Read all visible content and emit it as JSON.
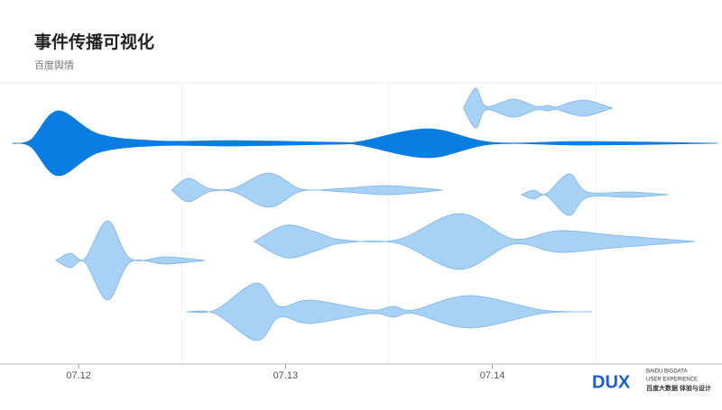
{
  "chart_data": {
    "type": "stream",
    "title": "事件传播可视化",
    "subtitle": "百度舆情",
    "xlim": [
      11.62,
      15.11
    ],
    "xticks": [
      {
        "value": 12,
        "label": "07.12"
      },
      {
        "value": 13,
        "label": "07.13"
      },
      {
        "value": 14,
        "label": "07.14"
      }
    ],
    "xgrid": [
      12.5,
      13.5,
      14.5
    ],
    "series": [
      {
        "color": "#0a7de3",
        "x": [
          11.68,
          11.77,
          11.9,
          12.1,
          12.4,
          12.75,
          13.25,
          13.36,
          13.69,
          14.0,
          14.45,
          15.09
        ],
        "values": [
          0,
          8,
          72,
          20,
          5,
          6,
          2,
          4,
          32,
          2,
          4,
          0
        ]
      },
      {
        "color": "#a8d2f5",
        "x": [
          13.86,
          13.92,
          13.97,
          14.1,
          14.21,
          14.27,
          14.31,
          14.44,
          14.58
        ],
        "values": [
          0,
          44,
          4,
          20,
          4,
          6,
          3,
          18,
          0
        ]
      },
      {
        "color": "#a8d2f5",
        "x": [
          12.45,
          12.53,
          12.63,
          12.75,
          12.92,
          13.08,
          13.28,
          13.5,
          13.76
        ],
        "values": [
          0,
          26,
          4,
          4,
          38,
          2,
          4,
          10,
          0
        ]
      },
      {
        "color": "#a8d2f5",
        "x": [
          14.14,
          14.2,
          14.26,
          14.37,
          14.46,
          14.67,
          14.85
        ],
        "values": [
          0,
          10,
          2,
          46,
          6,
          6,
          0
        ]
      },
      {
        "color": "#a8d2f5",
        "x": [
          12.85,
          13.0,
          13.14,
          13.27,
          13.54,
          13.84,
          14.1,
          14.32,
          14.59,
          14.98
        ],
        "values": [
          0,
          36,
          22,
          4,
          4,
          62,
          6,
          24,
          14,
          0
        ]
      },
      {
        "color": "#a8d2f5",
        "x": [
          11.89,
          11.96,
          12.03,
          12.14,
          12.25,
          12.42,
          12.61
        ],
        "values": [
          0,
          16,
          4,
          88,
          4,
          8,
          0
        ]
      },
      {
        "color": "#a8d2f5",
        "x": [
          12.52,
          12.66,
          12.86,
          12.97,
          13.12,
          13.41,
          13.52,
          13.62,
          13.89,
          14.24,
          14.48
        ],
        "values": [
          0,
          4,
          64,
          12,
          26,
          4,
          12,
          4,
          36,
          4,
          0
        ]
      }
    ],
    "logo": {
      "mark": "DUX",
      "lines": [
        "BAIDU BIGDATA",
        "USER EXPERIENCE",
        "百度大数据 体验与设计"
      ]
    }
  }
}
